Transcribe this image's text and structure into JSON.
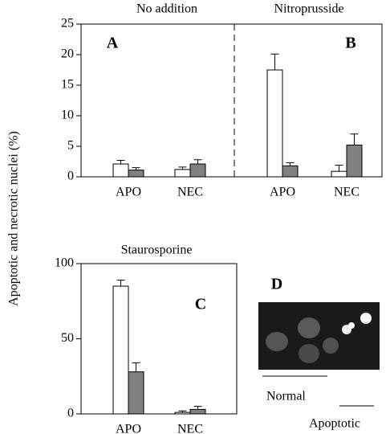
{
  "y_label": "Apoptotic and necrotic nuclei (%)",
  "chart_data": [
    {
      "type": "bar",
      "title": "No addition",
      "panel_label": "A",
      "categories": [
        "APO",
        "NEC"
      ],
      "series": [
        {
          "color": "#ffffff",
          "values": [
            2.1,
            1.2
          ],
          "errors": [
            0.6,
            0.4
          ]
        },
        {
          "color": "#808080",
          "values": [
            1.1,
            2.1
          ],
          "errors": [
            0.4,
            0.7
          ]
        }
      ],
      "ylim": [
        0,
        25
      ],
      "yticks": [
        0,
        5,
        10,
        15,
        20,
        25
      ]
    },
    {
      "type": "bar",
      "title": "Nitroprusside",
      "panel_label": "B",
      "categories": [
        "APO",
        "NEC"
      ],
      "series": [
        {
          "color": "#ffffff",
          "values": [
            17.5,
            0.9
          ],
          "errors": [
            2.6,
            1.0
          ]
        },
        {
          "color": "#808080",
          "values": [
            1.8,
            5.2
          ],
          "errors": [
            0.5,
            1.8
          ]
        }
      ],
      "ylim": [
        0,
        25
      ]
    },
    {
      "type": "bar",
      "title": "Staurosporine",
      "panel_label": "C",
      "categories": [
        "APO",
        "NEC"
      ],
      "series": [
        {
          "color": "#ffffff",
          "values": [
            85,
            1
          ],
          "errors": [
            4,
            1
          ]
        },
        {
          "color": "#808080",
          "values": [
            28,
            3
          ],
          "errors": [
            6,
            2
          ]
        }
      ],
      "ylim": [
        0,
        100
      ],
      "yticks": [
        0,
        50,
        100
      ]
    }
  ],
  "micrograph": {
    "panel_label": "D",
    "annotations": [
      "Normal",
      "Apoptotic"
    ]
  }
}
